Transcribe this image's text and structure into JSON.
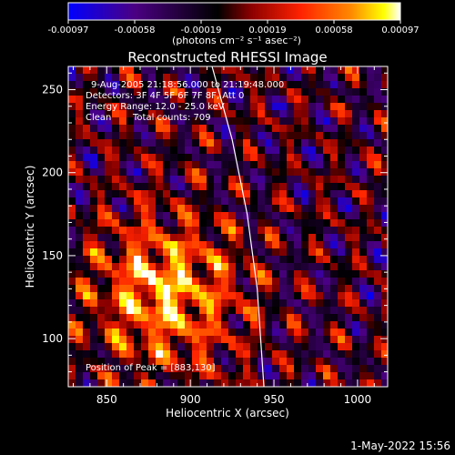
{
  "chart_data": {
    "type": "heatmap",
    "title": "Reconstructed RHESSI Image",
    "xlabel": "Heliocentric X (arcsec)",
    "ylabel": "Heliocentric Y (arcsec)",
    "xlim": [
      827,
      1018
    ],
    "ylim": [
      71,
      264
    ],
    "xticks": [
      850,
      900,
      950,
      1000
    ],
    "yticks": [
      100,
      150,
      200,
      250
    ],
    "colorbar": {
      "min": -0.00097,
      "max": 0.00097,
      "tick_labels": [
        "-0.00097",
        "-0.00058",
        "-0.00019",
        "0.00019",
        "0.00058",
        "0.00097"
      ],
      "units_label": "(photons cm⁻² s⁻¹ asec⁻²)",
      "colors": [
        "#0000ff",
        "#4b0082",
        "#000000",
        "#8b0000",
        "#ff2200",
        "#ff8800",
        "#ffff00",
        "#ffffff"
      ]
    },
    "annotations": {
      "time_range": "9-Aug-2005 21:18:56.000 to 21:19:48.000",
      "detectors": "Detectors: 3F 4F 5F 6F 7F 8F, Att 0",
      "energy_range": "Energy Range: 12.0 - 25.0 keV",
      "clean": "Clean",
      "total_counts": "Total counts: 709",
      "peak": "Position of Peak = [883,130]"
    },
    "peak": [
      883,
      130
    ],
    "limb_curve": [
      [
        913,
        264
      ],
      [
        925,
        220
      ],
      [
        934,
        175
      ],
      [
        940,
        130
      ],
      [
        944,
        71
      ]
    ],
    "grid": false
  },
  "footer": {
    "timestamp": "1-May-2022 15:56"
  }
}
